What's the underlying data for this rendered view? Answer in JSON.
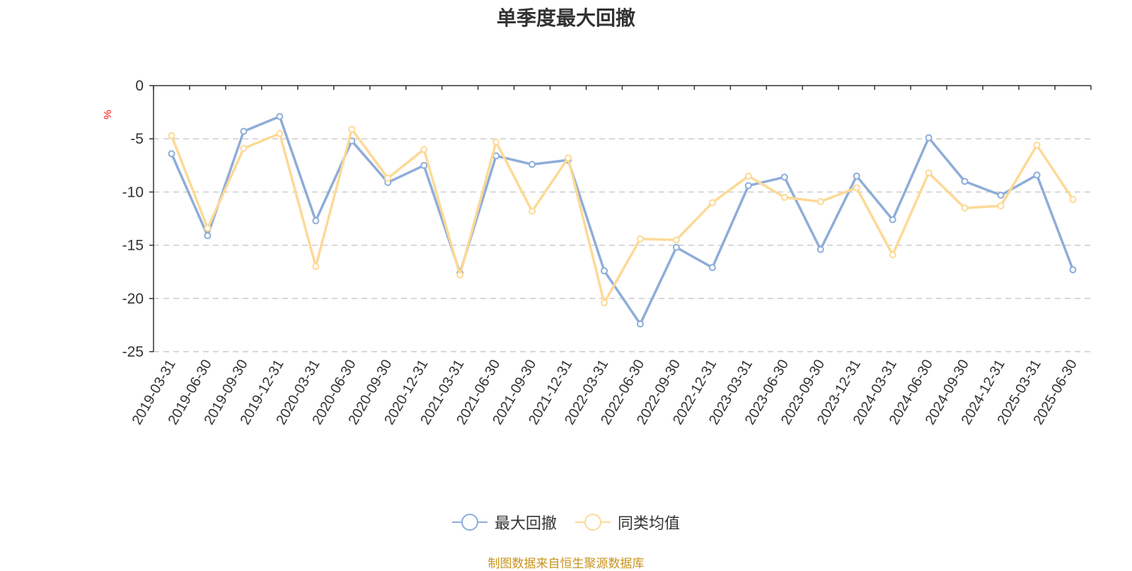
{
  "chart_data": {
    "type": "line",
    "title": "单季度最大回撤",
    "ylabel": "%",
    "ylim": [
      -25,
      0
    ],
    "yticks": [
      0,
      -5,
      -10,
      -15,
      -20,
      -25
    ],
    "grid": true,
    "legend_position": "bottom-center",
    "categories": [
      "2019-03-31",
      "2019-06-30",
      "2019-09-30",
      "2019-12-31",
      "2020-03-31",
      "2020-06-30",
      "2020-09-30",
      "2020-12-31",
      "2021-03-31",
      "2021-06-30",
      "2021-09-30",
      "2021-12-31",
      "2022-03-31",
      "2022-06-30",
      "2022-09-30",
      "2022-12-31",
      "2023-03-31",
      "2023-06-30",
      "2023-09-30",
      "2023-12-31",
      "2024-03-31",
      "2024-06-30",
      "2024-09-30",
      "2024-12-31",
      "2025-03-31",
      "2025-06-30"
    ],
    "series": [
      {
        "name": "最大回撤",
        "color": "#8eadd8",
        "values": [
          -6.4,
          -14.1,
          -4.3,
          -2.9,
          -12.7,
          -5.2,
          -9.1,
          -7.5,
          -17.6,
          -6.6,
          -7.4,
          -7.0,
          -17.4,
          -22.4,
          -15.2,
          -17.1,
          -9.4,
          -8.6,
          -15.4,
          -8.5,
          -12.6,
          -4.9,
          -9.0,
          -10.3,
          -8.4,
          -17.3
        ]
      },
      {
        "name": "同类均值",
        "color": "#fdd996",
        "values": [
          -4.7,
          -13.4,
          -5.9,
          -4.5,
          -17.0,
          -4.1,
          -8.7,
          -6.0,
          -17.8,
          -5.3,
          -11.8,
          -6.8,
          -20.4,
          -14.4,
          -14.5,
          -11.0,
          -8.5,
          -10.5,
          -10.9,
          -9.6,
          -15.9,
          -8.2,
          -11.5,
          -11.3,
          -5.6,
          -10.7
        ]
      }
    ]
  },
  "source_text": "制图数据来自恒生聚源数据库"
}
